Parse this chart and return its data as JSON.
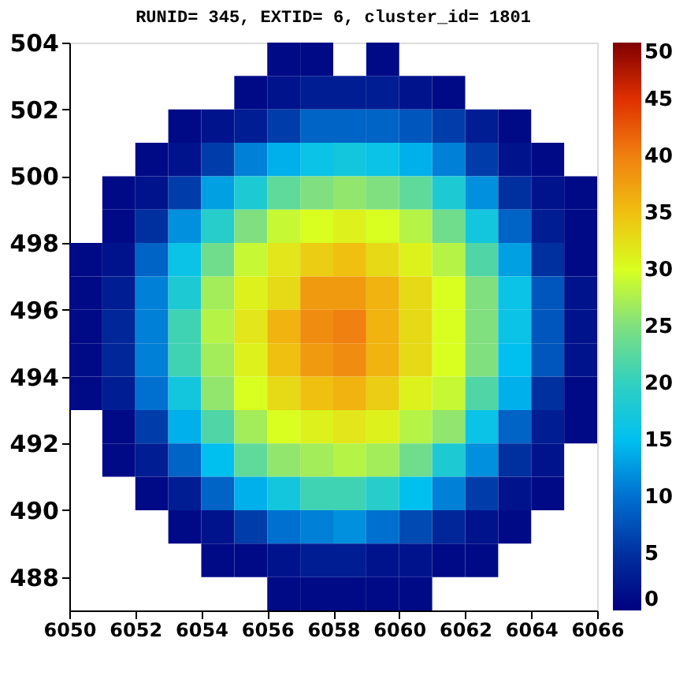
{
  "chart_data": {
    "type": "heatmap",
    "title": "RUNID= 345, EXTID= 6, cluster_id= 1801",
    "x": [
      6050.5,
      6051.5,
      6052.5,
      6053.5,
      6054.5,
      6055.5,
      6056.5,
      6057.5,
      6058.5,
      6059.5,
      6060.5,
      6061.5,
      6062.5,
      6063.5,
      6064.5,
      6065.5
    ],
    "y": [
      503.5,
      502.5,
      501.5,
      500.5,
      499.5,
      498.5,
      497.5,
      496.5,
      495.5,
      494.5,
      493.5,
      492.5,
      491.5,
      490.5,
      489.5,
      488.5,
      487.5
    ],
    "cells": [
      [
        null,
        null,
        null,
        null,
        null,
        null,
        1,
        1,
        null,
        1,
        null,
        null,
        null,
        null,
        null,
        null
      ],
      [
        null,
        null,
        null,
        null,
        null,
        1,
        2,
        3,
        3,
        3,
        2,
        1,
        null,
        null,
        null,
        null
      ],
      [
        null,
        null,
        null,
        1,
        2,
        3,
        6,
        9,
        9,
        9,
        8,
        6,
        3,
        1,
        null,
        null
      ],
      [
        null,
        null,
        1,
        2,
        6,
        11,
        14,
        16,
        17,
        16,
        14,
        11,
        6,
        2,
        1,
        null
      ],
      [
        null,
        1,
        2,
        6,
        13,
        18,
        23,
        25,
        26,
        25,
        23,
        18,
        12,
        5,
        2,
        1
      ],
      [
        null,
        1,
        5,
        12,
        19,
        25,
        29,
        30,
        31,
        30,
        28,
        24,
        17,
        9,
        3,
        1
      ],
      [
        1,
        2,
        9,
        16,
        24,
        29,
        32,
        34,
        35,
        33,
        31,
        28,
        22,
        13,
        5,
        1
      ],
      [
        1,
        3,
        11,
        18,
        27,
        31,
        33,
        38,
        38,
        36,
        33,
        30,
        25,
        16,
        8,
        2
      ],
      [
        1,
        4,
        11,
        21,
        28,
        32,
        36,
        39,
        40,
        36,
        33,
        30,
        25,
        16,
        8,
        2
      ],
      [
        1,
        4,
        11,
        21,
        27,
        31,
        35,
        38,
        39,
        36,
        33,
        30,
        25,
        15,
        8,
        2
      ],
      [
        1,
        3,
        10,
        17,
        26,
        30,
        33,
        35,
        36,
        34,
        31,
        29,
        22,
        14,
        5,
        1
      ],
      [
        null,
        1,
        6,
        14,
        22,
        27,
        30,
        31,
        32,
        31,
        28,
        26,
        16,
        9,
        3,
        1
      ],
      [
        null,
        1,
        3,
        9,
        15,
        23,
        26,
        27,
        28,
        27,
        24,
        18,
        12,
        5,
        2,
        null
      ],
      [
        null,
        null,
        1,
        3,
        9,
        14,
        17,
        21,
        21,
        19,
        15,
        11,
        6,
        2,
        1,
        null
      ],
      [
        null,
        null,
        null,
        1,
        2,
        6,
        10,
        11,
        12,
        10,
        7,
        4,
        2,
        1,
        null,
        null
      ],
      [
        null,
        null,
        null,
        null,
        1,
        1,
        2,
        3,
        3,
        2,
        2,
        1,
        1,
        null,
        null,
        null
      ],
      [
        null,
        null,
        null,
        null,
        null,
        null,
        1,
        1,
        1,
        1,
        1,
        null,
        null,
        null,
        null,
        null
      ]
    ],
    "xlim": [
      6050,
      6066
    ],
    "xticks": [
      6050,
      6052,
      6054,
      6056,
      6058,
      6060,
      6062,
      6064,
      6066
    ],
    "ylim": [
      487,
      504
    ],
    "yticks": [
      488,
      490,
      492,
      494,
      496,
      498,
      500,
      502,
      504
    ],
    "clim": [
      0,
      50
    ],
    "cticks": [
      0,
      5,
      10,
      15,
      20,
      25,
      30,
      35,
      40,
      45,
      50
    ],
    "grid": false
  }
}
